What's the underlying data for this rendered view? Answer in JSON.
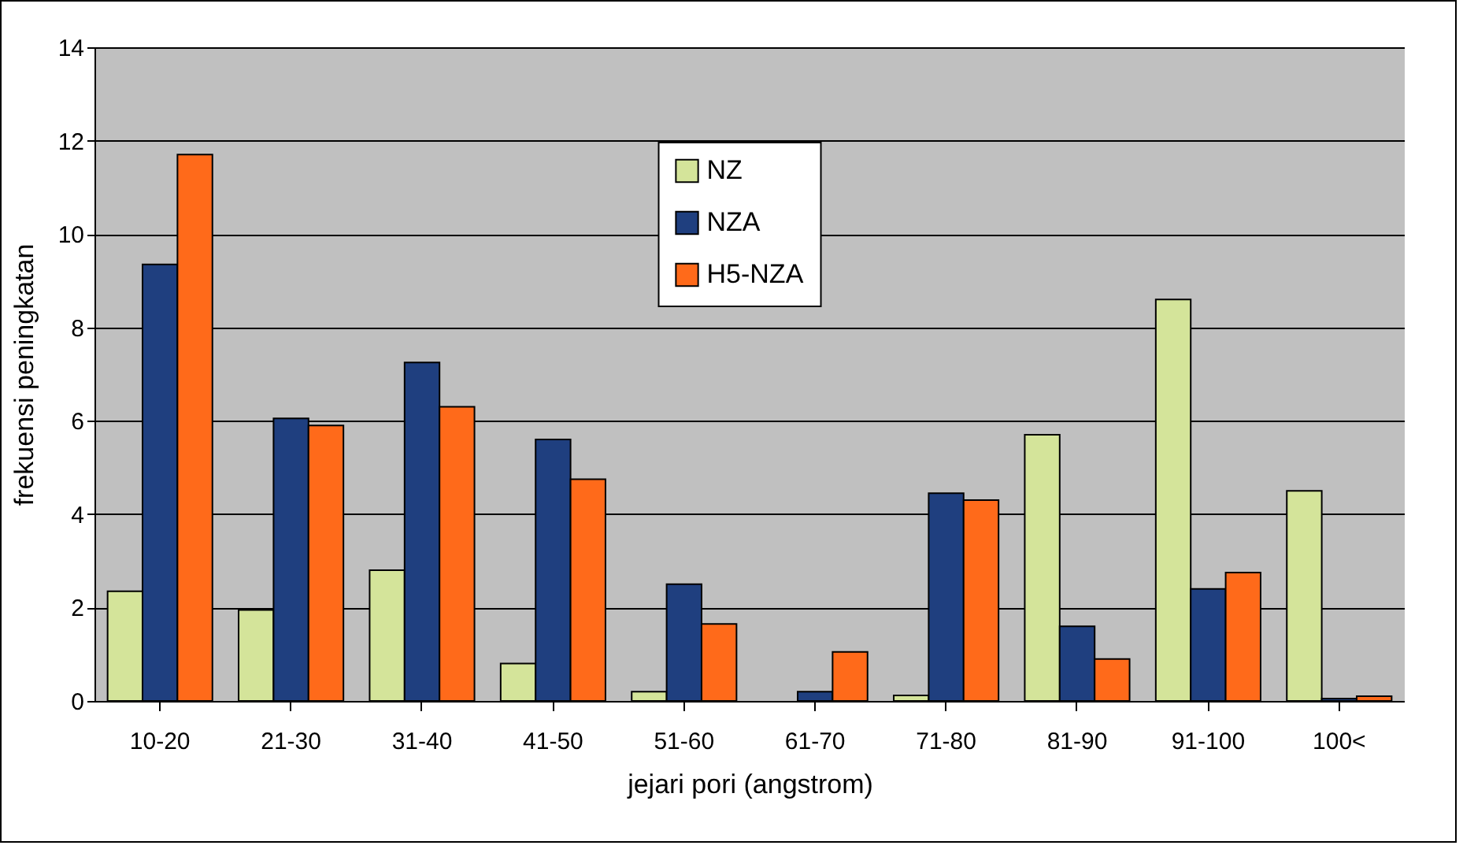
{
  "chart_data": {
    "type": "bar",
    "xlabel": "jejari pori (angstrom)",
    "ylabel": "frekuensi peningkatan",
    "categories": [
      "10-20",
      "21-30",
      "31-40",
      "41-50",
      "51-60",
      "61-70",
      "71-80",
      "81-90",
      "91-100",
      "100<"
    ],
    "series": [
      {
        "name": "NZ",
        "color": "#d4e49a",
        "values": [
          2.35,
          1.95,
          2.8,
          0.8,
          0.2,
          null,
          0.12,
          5.7,
          8.6,
          4.5
        ]
      },
      {
        "name": "NZA",
        "color": "#1f3f7f",
        "values": [
          9.35,
          6.05,
          7.25,
          5.6,
          2.5,
          0.2,
          4.45,
          1.6,
          2.4,
          0.05
        ]
      },
      {
        "name": "H5-NZA",
        "color": "#ff6a1a",
        "values": [
          11.7,
          5.9,
          6.3,
          4.75,
          1.65,
          1.05,
          4.3,
          0.9,
          2.75,
          0.1
        ]
      }
    ],
    "ylim": [
      0,
      14
    ],
    "yticks": [
      0,
      2,
      4,
      6,
      8,
      10,
      12,
      14
    ],
    "grid": "y",
    "legend": "top"
  }
}
